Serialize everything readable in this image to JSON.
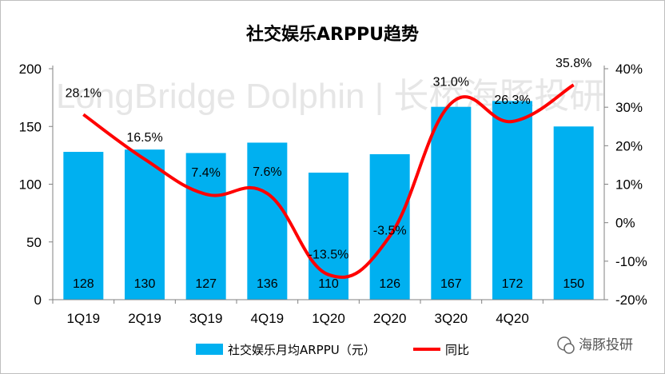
{
  "chart_data": {
    "type": "bar+line",
    "title": "社交娱乐ARPPU趋势",
    "categories": [
      "1Q19",
      "2Q19",
      "3Q19",
      "4Q19",
      "1Q20",
      "2Q20",
      "3Q20",
      "4Q20",
      ""
    ],
    "series": [
      {
        "name": "社交娱乐月均ARPPU（元）",
        "type": "bar",
        "axis": "left",
        "color": "#00b0f0",
        "values": [
          128,
          130,
          127,
          136,
          110,
          126,
          167,
          172,
          150
        ],
        "labels": [
          "128",
          "130",
          "127",
          "136",
          "110",
          "126",
          "167",
          "172",
          "150"
        ]
      },
      {
        "name": "同比",
        "type": "line",
        "axis": "right",
        "color": "#ff0000",
        "values": [
          28.1,
          16.5,
          7.4,
          7.6,
          -13.5,
          -3.5,
          31.0,
          26.3,
          35.8
        ],
        "labels": [
          "28.1%",
          "16.5%",
          "7.4%",
          "7.6%",
          "-13.5%",
          "-3.5%",
          "31.0%",
          "26.3%",
          "35.8%"
        ]
      }
    ],
    "y_left": {
      "min": 0,
      "max": 200,
      "ticks": [
        "0",
        "50",
        "100",
        "150",
        "200"
      ]
    },
    "y_right": {
      "min": -20,
      "max": 40,
      "ticks": [
        "-20%",
        "-10%",
        "0%",
        "10%",
        "20%",
        "30%",
        "40%"
      ]
    },
    "grid": false,
    "legend": "bottom"
  },
  "watermark": {
    "text": "LongBridge Dolphin | 长桥海豚投研",
    "logo_text": "海豚投研"
  }
}
